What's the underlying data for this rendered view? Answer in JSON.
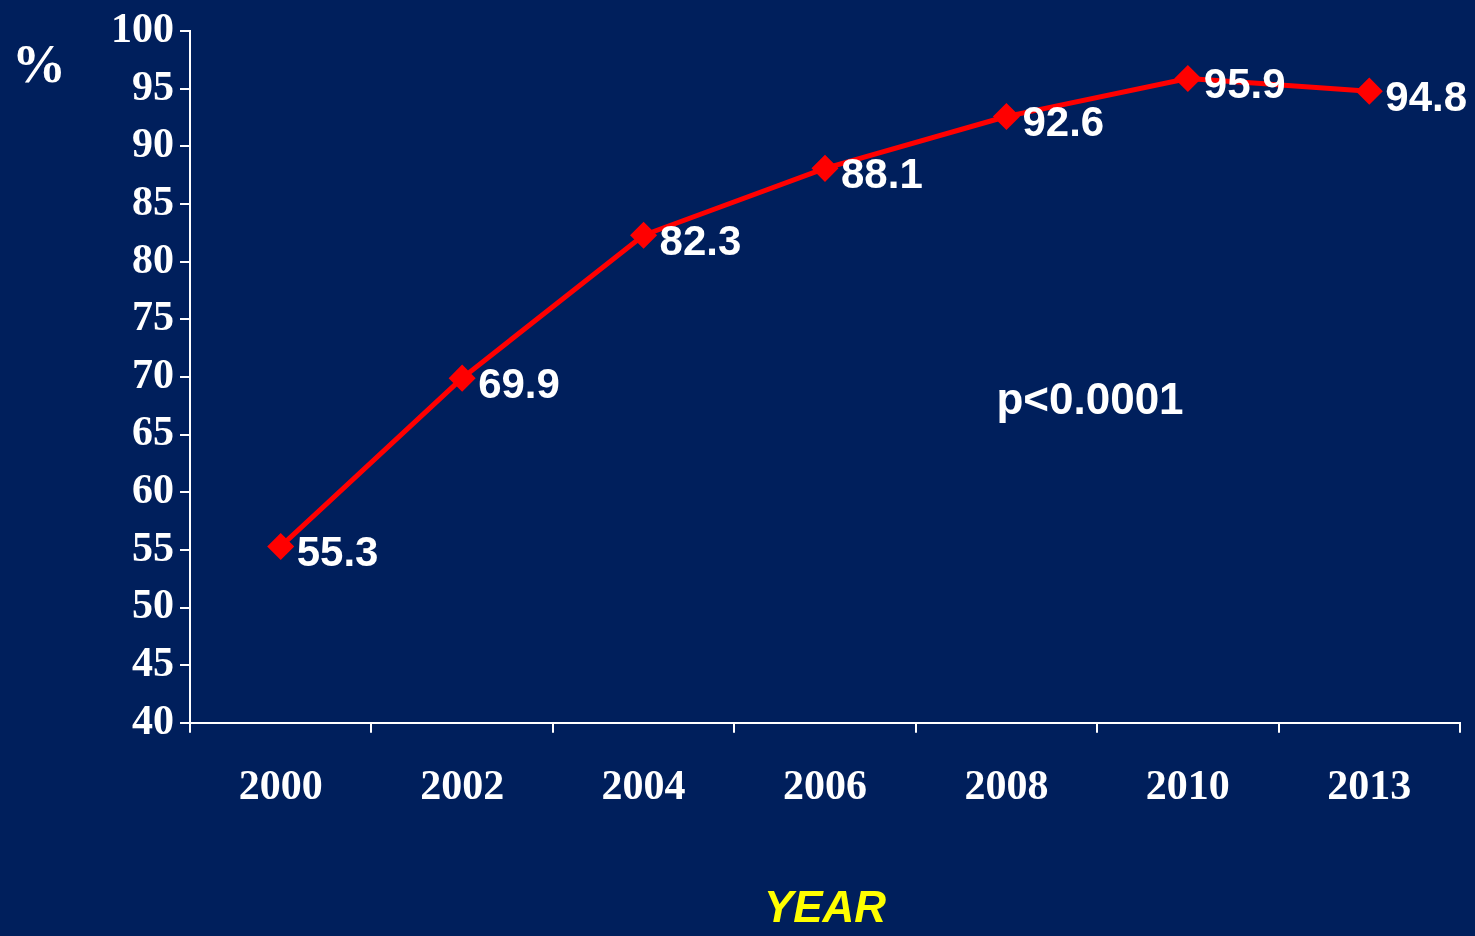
{
  "chart_data": {
    "type": "line",
    "categories": [
      "2000",
      "2002",
      "2004",
      "2006",
      "2008",
      "2010",
      "2013"
    ],
    "series": [
      {
        "color": "#ff0000",
        "values": [
          55.3,
          69.9,
          82.3,
          88.1,
          92.6,
          95.9,
          94.8
        ]
      }
    ],
    "ylabel": "%",
    "xlabel": "YEAR",
    "annotations": [
      "p<0.0001"
    ],
    "ylim": [
      40,
      100
    ],
    "yticks": [
      40,
      45,
      50,
      55,
      60,
      65,
      70,
      75,
      80,
      85,
      90,
      95,
      100
    ],
    "data_labels": true,
    "marker": "diamond",
    "line_style": "solid",
    "grid": false,
    "legend": false
  }
}
